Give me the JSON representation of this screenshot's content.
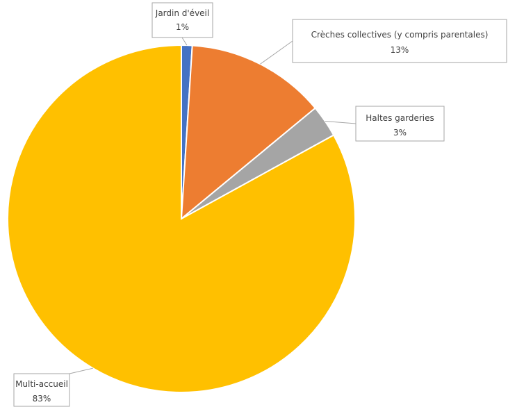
{
  "chart_data": {
    "type": "pie",
    "title": "",
    "start_angle_deg": 0,
    "direction": "clockwise",
    "slices": [
      {
        "category": "Jardin d'éveil",
        "value": 1,
        "label": "1%",
        "color": "#4472C4"
      },
      {
        "category": "Crèches collectives (y compris parentales)",
        "value": 13,
        "label": "13%",
        "color": "#ED7D31"
      },
      {
        "category": "Haltes garderies",
        "value": 3,
        "label": "3%",
        "color": "#A5A5A5"
      },
      {
        "category": "Multi-accueil",
        "value": 83,
        "label": "83%",
        "color": "#FFC000"
      }
    ],
    "legend": "none",
    "data_labels": "callouts"
  }
}
